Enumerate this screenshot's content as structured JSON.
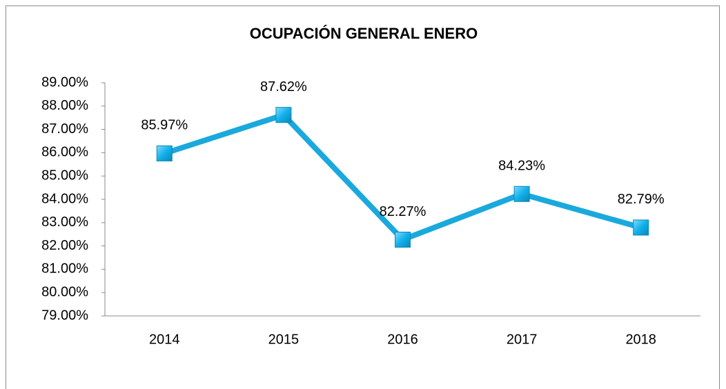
{
  "chart_data": {
    "type": "line",
    "title": "OCUPACIÓN GENERAL ENERO",
    "categories": [
      "2014",
      "2015",
      "2016",
      "2017",
      "2018"
    ],
    "series": [
      {
        "name": "OCUPACIÓN GENERAL ENERO",
        "color": "#1aa9dc",
        "values": [
          85.97,
          87.62,
          82.27,
          84.23,
          82.79
        ],
        "value_labels": [
          "85.97%",
          "87.62%",
          "82.27%",
          "84.23%",
          "82.79%"
        ]
      }
    ],
    "ylim": [
      79,
      89
    ],
    "yticks": [
      {
        "value": 79,
        "label": "79.00%"
      },
      {
        "value": 80,
        "label": "80.00%"
      },
      {
        "value": 81,
        "label": "81.00%"
      },
      {
        "value": 82,
        "label": "82.00%"
      },
      {
        "value": 83,
        "label": "83.00%"
      },
      {
        "value": 84,
        "label": "84.00%"
      },
      {
        "value": 85,
        "label": "85.00%"
      },
      {
        "value": 86,
        "label": "86.00%"
      },
      {
        "value": 87,
        "label": "87.00%"
      },
      {
        "value": 88,
        "label": "88.00%"
      },
      {
        "value": 89,
        "label": "89.00%"
      }
    ],
    "grid": false
  }
}
